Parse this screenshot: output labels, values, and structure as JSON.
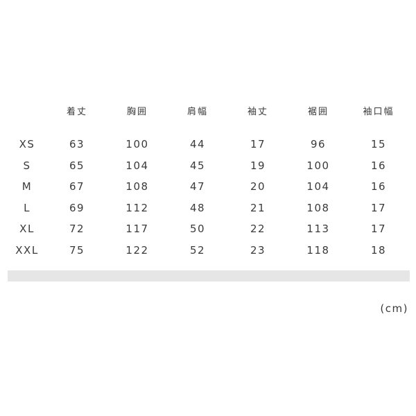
{
  "table": {
    "headers": [
      "",
      "着丈",
      "胸囲",
      "肩幅",
      "袖丈",
      "裾囲",
      "袖口幅"
    ],
    "rows": [
      [
        "XS",
        "63",
        "100",
        "44",
        "17",
        "96",
        "15"
      ],
      [
        "S",
        "65",
        "104",
        "45",
        "19",
        "100",
        "16"
      ],
      [
        "M",
        "67",
        "108",
        "47",
        "20",
        "104",
        "16"
      ],
      [
        "L",
        "69",
        "112",
        "48",
        "21",
        "108",
        "17"
      ],
      [
        "XL",
        "72",
        "117",
        "50",
        "22",
        "113",
        "17"
      ],
      [
        "XXL",
        "75",
        "122",
        "52",
        "23",
        "118",
        "18"
      ]
    ]
  },
  "unit": "(cm)"
}
